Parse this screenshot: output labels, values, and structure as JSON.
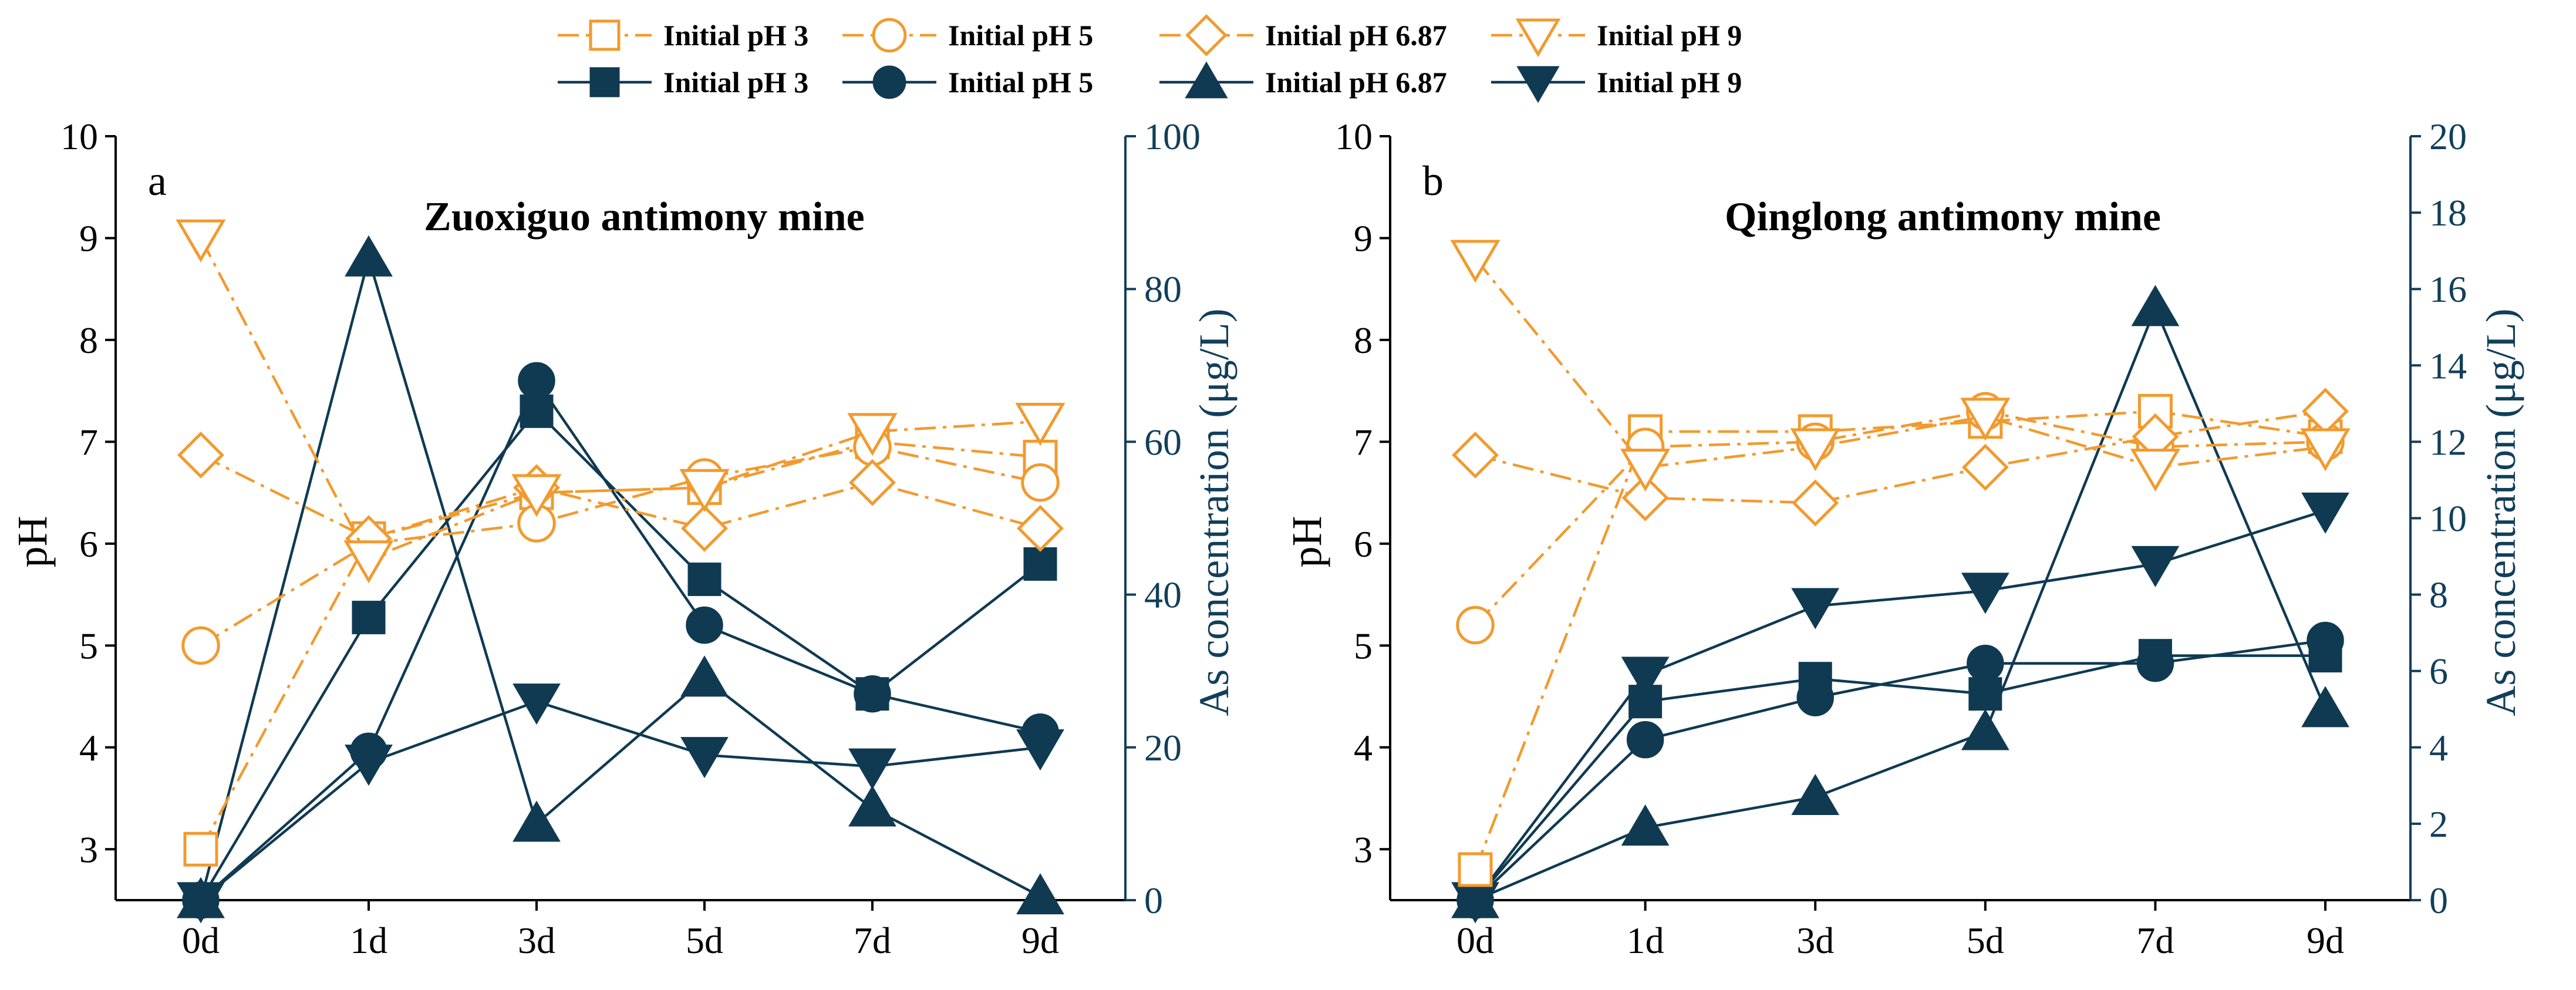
{
  "colors": {
    "ph_series": "#F29A2E",
    "as_series": "#0F3A52",
    "right_axis": "#123F5A",
    "axis": "#000000"
  },
  "legend": {
    "ph_entries": [
      "Initial pH 3",
      "Initial pH 5",
      "Initial pH 6.87",
      "Initial pH 9"
    ],
    "as_entries": [
      "Initial pH 3",
      "Initial pH 5",
      "Initial pH 6.87",
      "Initial pH 9"
    ]
  },
  "chart_data": [
    {
      "type": "line",
      "panel_label": "a",
      "title": "Zuoxiguo antimony mine",
      "categories": [
        "0d",
        "1d",
        "3d",
        "5d",
        "7d",
        "9d"
      ],
      "xlabel": "",
      "ylabel": "pH",
      "y2label": "As concentration (μg/L)",
      "ylim": [
        2.5,
        10
      ],
      "y2lim": [
        0,
        100
      ],
      "yticks": [
        3,
        4,
        5,
        6,
        7,
        8,
        9,
        10
      ],
      "y2ticks": [
        0,
        20,
        40,
        60,
        80,
        100
      ],
      "ph_series": [
        {
          "name": "Initial pH 3",
          "marker": "square",
          "values": [
            3.0,
            6.05,
            6.5,
            6.55,
            7.0,
            6.85
          ]
        },
        {
          "name": "Initial pH 5",
          "marker": "circle",
          "values": [
            5.0,
            6.0,
            6.2,
            6.65,
            6.95,
            6.6
          ]
        },
        {
          "name": "Initial pH 6.87",
          "marker": "diamond",
          "values": [
            6.87,
            6.05,
            6.55,
            6.15,
            6.6,
            6.15
          ]
        },
        {
          "name": "Initial pH 9",
          "marker": "triangle-down",
          "values": [
            9.0,
            5.85,
            6.5,
            6.55,
            7.1,
            7.2
          ]
        }
      ],
      "as_series": [
        {
          "name": "Initial pH 3",
          "marker": "square",
          "values": [
            0,
            37,
            64,
            42,
            27,
            44
          ]
        },
        {
          "name": "Initial pH 5",
          "marker": "circle",
          "values": [
            0,
            19.5,
            68,
            36,
            27,
            22
          ]
        },
        {
          "name": "Initial pH 6.87",
          "marker": "triangle-up",
          "values": [
            0,
            84,
            10,
            29,
            12,
            0.5
          ]
        },
        {
          "name": "Initial pH 9",
          "marker": "triangle-down",
          "values": [
            0,
            18,
            26,
            19,
            17.5,
            20
          ]
        }
      ]
    },
    {
      "type": "line",
      "panel_label": "b",
      "title": "Qinglong antimony mine",
      "categories": [
        "0d",
        "1d",
        "3d",
        "5d",
        "7d",
        "9d"
      ],
      "xlabel": "",
      "ylabel": "pH",
      "y2label": "As concentration (μg/L)",
      "ylim": [
        2.5,
        10
      ],
      "y2lim": [
        0,
        20
      ],
      "yticks": [
        3,
        4,
        5,
        6,
        7,
        8,
        9,
        10
      ],
      "y2ticks": [
        0,
        2,
        4,
        6,
        8,
        10,
        12,
        14,
        16,
        18,
        20
      ],
      "ph_series": [
        {
          "name": "Initial pH 3",
          "marker": "square",
          "values": [
            2.8,
            7.1,
            7.1,
            7.2,
            7.3,
            7.05
          ]
        },
        {
          "name": "Initial pH 5",
          "marker": "circle",
          "values": [
            5.2,
            6.95,
            7.0,
            7.3,
            6.95,
            7.0
          ]
        },
        {
          "name": "Initial pH 6.87",
          "marker": "diamond",
          "values": [
            6.87,
            6.45,
            6.4,
            6.75,
            7.05,
            7.3
          ]
        },
        {
          "name": "Initial pH 9",
          "marker": "triangle-down",
          "values": [
            8.8,
            6.75,
            6.95,
            7.25,
            6.75,
            6.95
          ]
        }
      ],
      "as_series": [
        {
          "name": "Initial pH 3",
          "marker": "square",
          "values": [
            0,
            5.2,
            5.8,
            5.4,
            6.4,
            6.4
          ]
        },
        {
          "name": "Initial pH 5",
          "marker": "circle",
          "values": [
            0,
            4.2,
            5.3,
            6.2,
            6.2,
            6.8
          ]
        },
        {
          "name": "Initial pH 6.87",
          "marker": "triangle-up",
          "values": [
            0,
            1.9,
            2.7,
            4.4,
            15.5,
            5.0
          ]
        },
        {
          "name": "Initial pH 9",
          "marker": "triangle-down",
          "values": [
            0,
            5.9,
            7.7,
            8.1,
            8.8,
            10.2
          ]
        }
      ]
    }
  ]
}
